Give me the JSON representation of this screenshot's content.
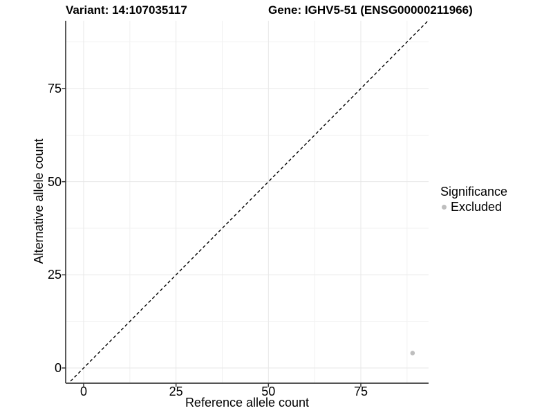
{
  "chart_data": {
    "type": "scatter",
    "title_left": "Variant: 14:107035117",
    "title_right": "Gene: IGHV5-51 (ENSG00000211966)",
    "xlabel": "Reference allele count",
    "ylabel": "Alternative allele count",
    "x_ticks": [
      0,
      25,
      50,
      75
    ],
    "y_ticks": [
      0,
      25,
      50,
      75
    ],
    "xlim": [
      -4.86,
      93.33
    ],
    "ylim": [
      -4.08,
      93.19
    ],
    "grid": true,
    "minor_grid": true,
    "legend": {
      "position": "right",
      "title": "Significance",
      "entries": [
        {
          "label": "Excluded",
          "color": "#bebebe"
        }
      ]
    },
    "reference_line": {
      "type": "identity",
      "slope": 1,
      "intercept": 0,
      "style": "dashed",
      "color": "#000000"
    },
    "series": [
      {
        "name": "Excluded",
        "color": "#bebebe",
        "points": [
          {
            "x": 89,
            "y": 4
          }
        ]
      }
    ],
    "styles": {
      "axis_color": "#3d3d3d",
      "tick_color": "#333333",
      "grid_major_color": "#e7e7e7",
      "grid_minor_color": "#f1f1f1",
      "text_color": "#000000"
    }
  }
}
